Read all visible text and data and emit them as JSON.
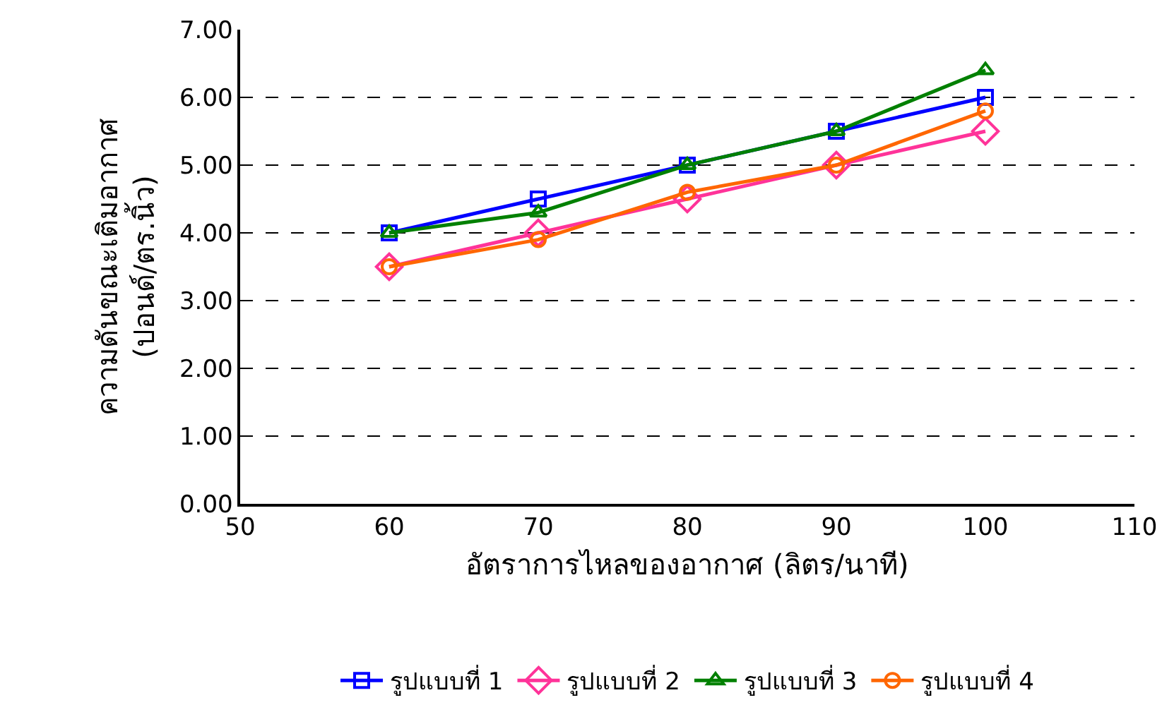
{
  "chart_data": {
    "type": "line",
    "xlabel": "อัตราการไหลของอากาศ (ลิตร/นาที)",
    "ylabel": "ความดันขณะเติมอากาศ\n(ปอนด์/ตร.นิ้ว)",
    "x": [
      60,
      70,
      80,
      90,
      100
    ],
    "series": [
      {
        "name": "รูปแบบที่ 1",
        "color": "#0000ff",
        "marker": "square",
        "values": [
          4.0,
          4.5,
          5.0,
          5.5,
          6.0
        ]
      },
      {
        "name": "รูปแบบที่ 2",
        "color": "#ff3399",
        "marker": "diamond",
        "values": [
          3.5,
          4.0,
          4.5,
          5.0,
          5.5
        ]
      },
      {
        "name": "รูปแบบที่ 3",
        "color": "#008000",
        "marker": "triangle",
        "values": [
          4.0,
          4.3,
          5.0,
          5.5,
          6.4
        ]
      },
      {
        "name": "รูปแบบที่ 4",
        "color": "#ff6600",
        "marker": "circle",
        "values": [
          3.5,
          3.9,
          4.6,
          5.0,
          5.8
        ]
      }
    ],
    "xlim": [
      50,
      110
    ],
    "xticks": [
      50,
      60,
      70,
      80,
      90,
      100,
      110
    ],
    "ylim": [
      0,
      7
    ],
    "yticks": [
      {
        "value": 0,
        "label": "0.00"
      },
      {
        "value": 1,
        "label": "1.00"
      },
      {
        "value": 2,
        "label": "2.00"
      },
      {
        "value": 3,
        "label": "3.00"
      },
      {
        "value": 4,
        "label": "4.00"
      },
      {
        "value": 5,
        "label": "5.00"
      },
      {
        "value": 6,
        "label": "6.00"
      },
      {
        "value": 7,
        "label": "7.00"
      }
    ],
    "grid": "y",
    "legend": "bottom",
    "line_style": "solid"
  }
}
